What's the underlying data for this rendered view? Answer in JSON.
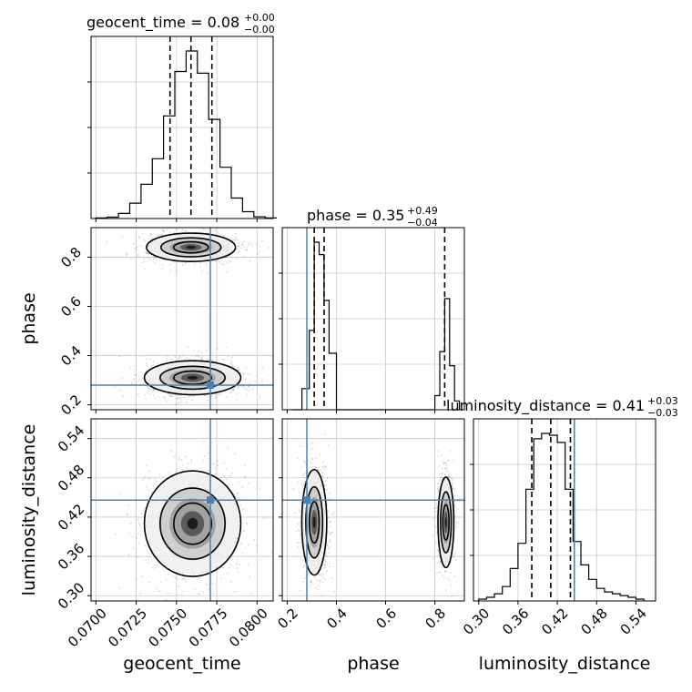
{
  "chart_data": {
    "type": "corner",
    "parameters": [
      "geocent_time",
      "phase",
      "luminosity_distance"
    ],
    "titles": {
      "geocent_time": {
        "label": "geocent_time = 0.08",
        "plus": "+0.00",
        "minus": "−0.00"
      },
      "phase": {
        "label": "phase = 0.35",
        "plus": "+0.49",
        "minus": "−0.04"
      },
      "luminosity_distance": {
        "label": "luminosity_distance = 0.41",
        "plus": "+0.03",
        "minus": "−0.03"
      }
    },
    "ranges": {
      "geocent_time": [
        0.0697,
        0.081
      ],
      "phase": [
        0.18,
        0.92
      ],
      "luminosity_distance": [
        0.292,
        0.57
      ]
    },
    "ticks": {
      "geocent_time": [
        "0.0700",
        "0.0725",
        "0.0750",
        "0.0775",
        "0.0800"
      ],
      "phase": [
        "0.2",
        "0.4",
        "0.6",
        "0.8"
      ],
      "luminosity_distance": [
        "0.30",
        "0.36",
        "0.42",
        "0.48",
        "0.54"
      ]
    },
    "truth": {
      "geocent_time": 0.0771,
      "phase": 0.28,
      "luminosity_distance": 0.446
    },
    "quantiles": {
      "geocent_time": [
        0.0746,
        0.0759,
        0.0772
      ],
      "phase": [
        0.31,
        0.35,
        0.84
      ],
      "luminosity_distance": [
        0.381,
        0.41,
        0.44
      ]
    },
    "histograms": {
      "geocent_time": {
        "x": [
          0.07,
          0.0707,
          0.0714,
          0.0721,
          0.0728,
          0.0735,
          0.0742,
          0.0749,
          0.0756,
          0.0763,
          0.077,
          0.0777,
          0.0784,
          0.0791,
          0.0798,
          0.0805
        ],
        "y": [
          0.003,
          0.008,
          0.03,
          0.09,
          0.2,
          0.35,
          0.6,
          0.86,
          0.98,
          0.85,
          0.58,
          0.3,
          0.12,
          0.04,
          0.01,
          0.003
        ]
      },
      "phase": {
        "x": [
          0.22,
          0.26,
          0.29,
          0.31,
          0.33,
          0.35,
          0.37,
          0.4,
          0.76,
          0.8,
          0.82,
          0.84,
          0.86,
          0.88
        ],
        "y": [
          0.0,
          0.12,
          0.45,
          0.95,
          0.88,
          0.62,
          0.32,
          0.0,
          0.0,
          0.08,
          0.33,
          0.63,
          0.25,
          0.05
        ]
      },
      "luminosity_distance": {
        "x": [
          0.3,
          0.312,
          0.324,
          0.336,
          0.348,
          0.36,
          0.372,
          0.384,
          0.396,
          0.408,
          0.42,
          0.432,
          0.444,
          0.456,
          0.468,
          0.48,
          0.492,
          0.504,
          0.516,
          0.528,
          0.54
        ],
        "y": [
          0.01,
          0.02,
          0.04,
          0.08,
          0.18,
          0.32,
          0.62,
          0.9,
          0.93,
          0.92,
          0.88,
          0.62,
          0.33,
          0.2,
          0.12,
          0.07,
          0.05,
          0.04,
          0.03,
          0.02,
          0.01
        ]
      }
    },
    "blobs": {
      "geocent_time|phase": [
        {
          "cx": 0.0759,
          "cy": 0.84,
          "sx": 0.0012,
          "sy": 0.025
        },
        {
          "cx": 0.076,
          "cy": 0.31,
          "sx": 0.0013,
          "sy": 0.03
        }
      ],
      "geocent_time|luminosity_distance": [
        {
          "cx": 0.076,
          "cy": 0.41,
          "sx": 0.0013,
          "sy": 0.035
        }
      ],
      "phase|luminosity_distance": [
        {
          "cx": 0.31,
          "cy": 0.412,
          "sx": 0.022,
          "sy": 0.035
        },
        {
          "cx": 0.845,
          "cy": 0.412,
          "sx": 0.014,
          "sy": 0.03
        }
      ]
    },
    "truth_color": "#4682b4",
    "grid": true
  }
}
